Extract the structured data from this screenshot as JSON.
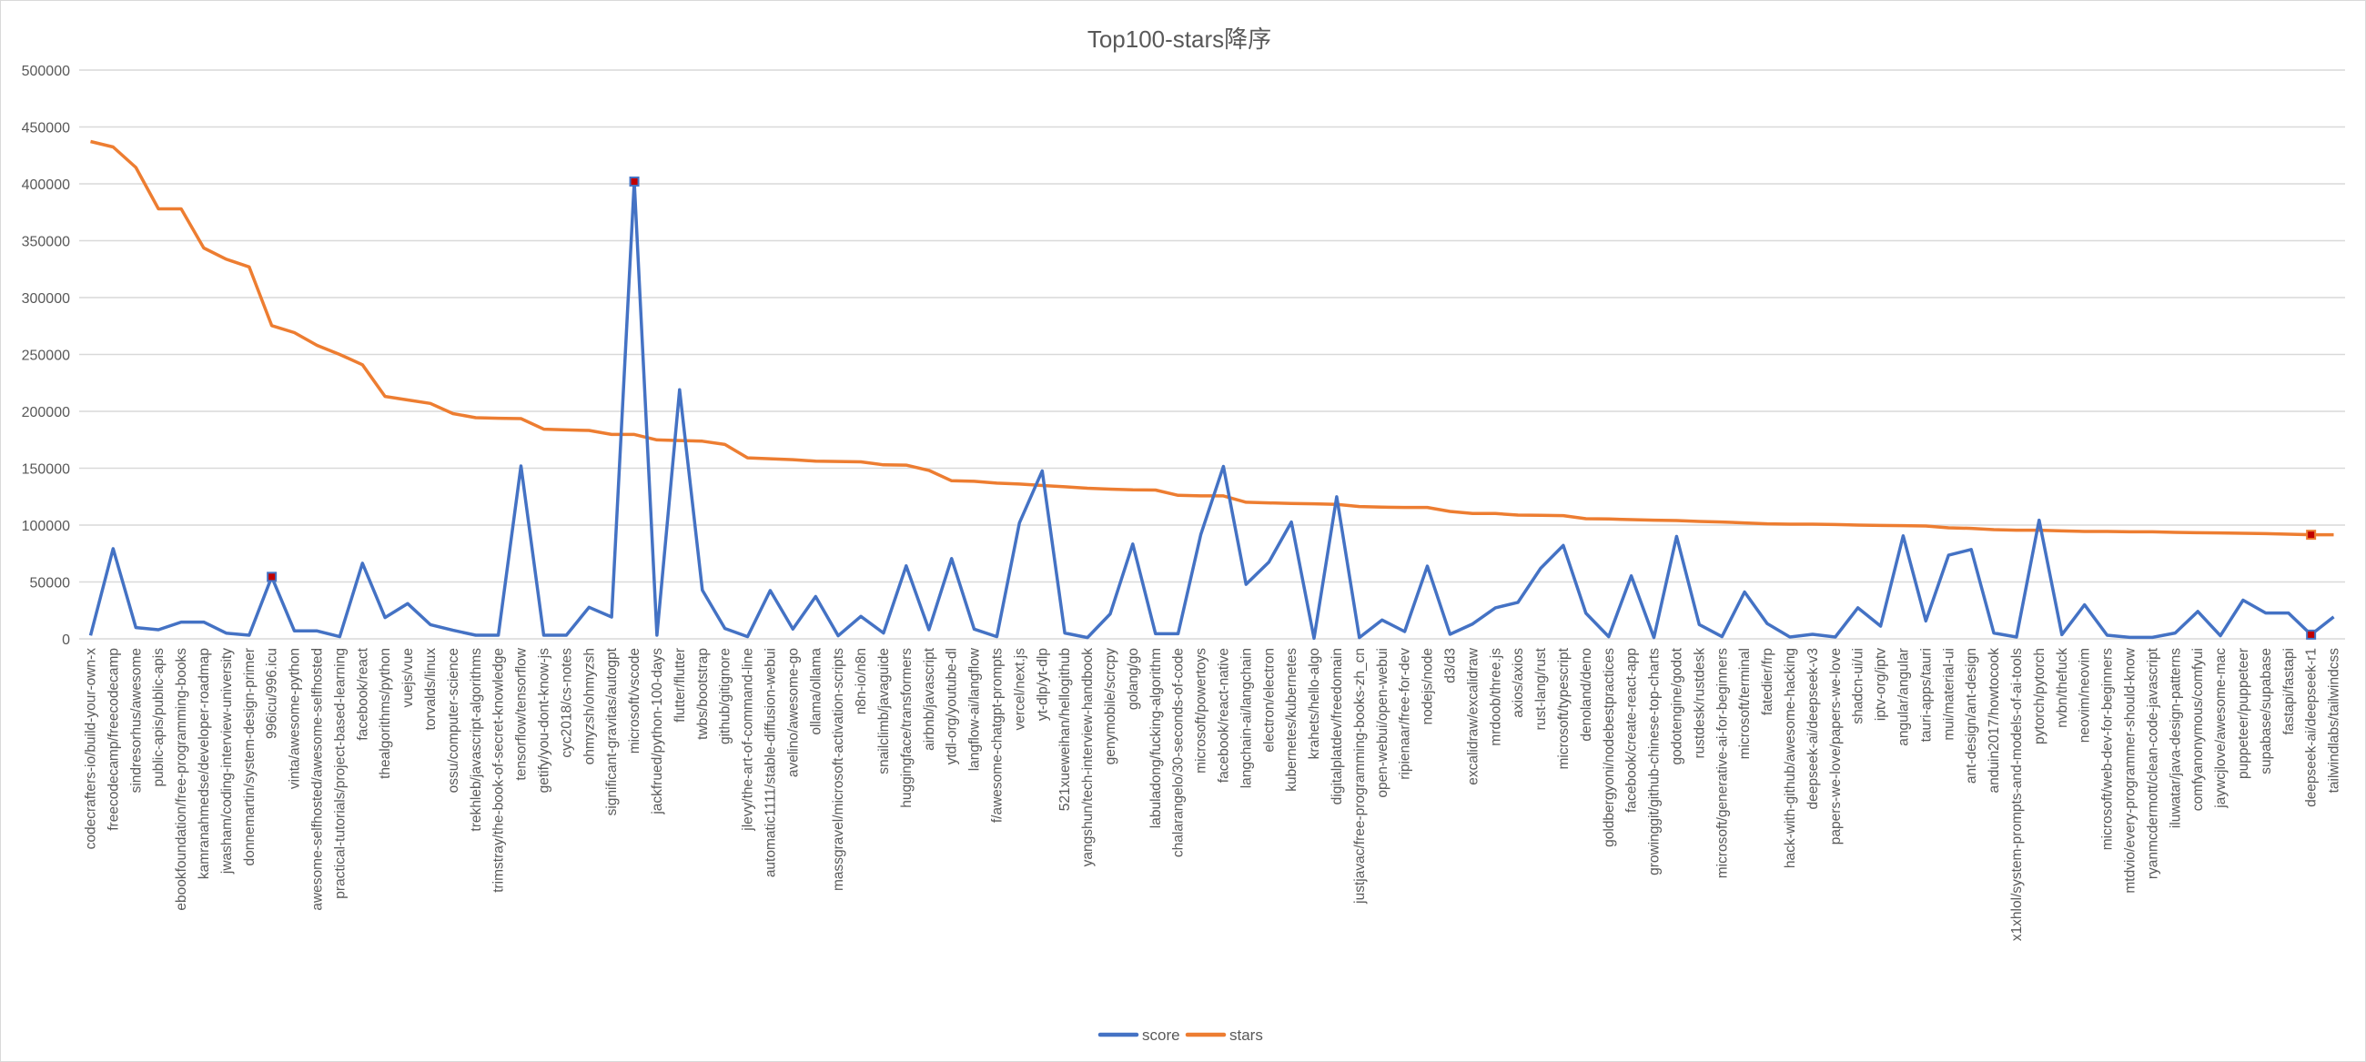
{
  "chart_data": {
    "type": "line",
    "title": "Top100-stars降序",
    "xlabel": "",
    "ylabel": "",
    "ylim": [
      0,
      500000
    ],
    "yticks": [
      0,
      50000,
      100000,
      150000,
      200000,
      250000,
      300000,
      350000,
      400000,
      450000,
      500000
    ],
    "grid": true,
    "legend_position": "bottom",
    "categories": [
      "codecrafters-io/build-your-own-x",
      "freecodecamp/freecodecamp",
      "sindresorhus/awesome",
      "public-apis/public-apis",
      "ebookfoundation/free-programming-books",
      "kamranahmedse/developer-roadmap",
      "jwasham/coding-interview-university",
      "donnemartin/system-design-primer",
      "996icu/996.icu",
      "vinta/awesome-python",
      "awesome-selfhosted/awesome-selfhosted",
      "practical-tutorials/project-based-learning",
      "facebook/react",
      "thealgorithms/python",
      "vuejs/vue",
      "torvalds/linux",
      "ossu/computer-science",
      "trekhleb/javascript-algorithms",
      "trimstray/the-book-of-secret-knowledge",
      "tensorflow/tensorflow",
      "getify/you-dont-know-js",
      "cyc2018/cs-notes",
      "ohmyzsh/ohmyzsh",
      "significant-gravitas/autogpt",
      "microsoft/vscode",
      "jackfrued/python-100-days",
      "flutter/flutter",
      "twbs/bootstrap",
      "github/gitignore",
      "jlevy/the-art-of-command-line",
      "automatic1111/stable-diffusion-webui",
      "avelino/awesome-go",
      "ollama/ollama",
      "massgravel/microsoft-activation-scripts",
      "n8n-io/n8n",
      "snailclimb/javaguide",
      "huggingface/transformers",
      "airbnb/javascript",
      "ytdl-org/youtube-dl",
      "langflow-ai/langflow",
      "f/awesome-chatgpt-prompts",
      "vercel/next.js",
      "yt-dlp/yt-dlp",
      "521xueweihan/hellogithub",
      "yangshun/tech-interview-handbook",
      "genymobile/scrcpy",
      "golang/go",
      "labuladong/fucking-algorithm",
      "chalarangelo/30-seconds-of-code",
      "microsoft/powertoys",
      "facebook/react-native",
      "langchain-ai/langchain",
      "electron/electron",
      "kubernetes/kubernetes",
      "krahets/hello-algo",
      "digitalplatdev/freedomain",
      "justjavac/free-programming-books-zh_cn",
      "open-webui/open-webui",
      "ripienaar/free-for-dev",
      "nodejs/node",
      "d3/d3",
      "excalidraw/excalidraw",
      "mrdoob/three.js",
      "axios/axios",
      "rust-lang/rust",
      "microsoft/typescript",
      "denoland/deno",
      "goldbergyoni/nodebestpractices",
      "facebook/create-react-app",
      "growinggit/github-chinese-top-charts",
      "godotengine/godot",
      "rustdesk/rustdesk",
      "microsoft/generative-ai-for-beginners",
      "microsoft/terminal",
      "fatedier/frp",
      "hack-with-github/awesome-hacking",
      "deepseek-ai/deepseek-v3",
      "papers-we-love/papers-we-love",
      "shadcn-ui/ui",
      "iptv-org/iptv",
      "angular/angular",
      "tauri-apps/tauri",
      "mui/material-ui",
      "ant-design/ant-design",
      "anduin2017/howtocook",
      "x1xhlol/system-prompts-and-models-of-ai-tools",
      "pytorch/pytorch",
      "nvbn/thefuck",
      "neovim/neovim",
      "microsoft/web-dev-for-beginners",
      "mtdvio/every-programmer-should-know",
      "ryanmcdermott/clean-code-javascript",
      "iluwatar/java-design-patterns",
      "comfyanonymous/comfyui",
      "jaywcjlove/awesome-mac",
      "puppeteer/puppeteer",
      "supabase/supabase",
      "fastapi/fastapi",
      "deepseek-ai/deepseek-r1",
      "tailwindlabs/tailwindcss"
    ],
    "series": [
      {
        "name": "score",
        "color": "#4472c4",
        "values": [
          3000,
          79300,
          9900,
          8000,
          14700,
          14700,
          5000,
          3200,
          54500,
          7000,
          7000,
          1900,
          66500,
          18700,
          31000,
          12500,
          7500,
          3200,
          3200,
          152000,
          3200,
          3200,
          27800,
          19200,
          402000,
          3200,
          219000,
          42800,
          9100,
          1900,
          42500,
          8600,
          37200,
          2700,
          19800,
          5100,
          64200,
          8000,
          70600,
          8600,
          1900,
          102100,
          147600,
          5100,
          1100,
          21900,
          83400,
          4500,
          4500,
          91500,
          151600,
          47900,
          67400,
          102700,
          500,
          124900,
          1100,
          16600,
          6400,
          63900,
          4000,
          13100,
          27300,
          32100,
          62000,
          82100,
          22500,
          1900,
          55400,
          1100,
          90100,
          12600,
          1900,
          41200,
          13400,
          1600,
          4000,
          1600,
          27300,
          11200,
          90600,
          15800,
          73500,
          78600,
          5100,
          1600,
          104300,
          3700,
          29900,
          3200,
          1300,
          1300,
          5100,
          24100,
          2700,
          34000,
          22700,
          22700,
          3700,
          19300
        ],
        "highlighted_indices": [
          8,
          24,
          98
        ]
      },
      {
        "name": "stars",
        "color": "#ed7d31",
        "values": [
          437200,
          432400,
          414400,
          378000,
          378000,
          343600,
          333700,
          327000,
          275400,
          269200,
          258000,
          250000,
          241000,
          213100,
          210000,
          207000,
          198000,
          194400,
          193900,
          193600,
          184300,
          183700,
          183200,
          179700,
          179700,
          174900,
          174300,
          173800,
          170900,
          159100,
          158300,
          157500,
          156200,
          155900,
          155600,
          153000,
          152700,
          148100,
          139000,
          138500,
          136900,
          136100,
          134800,
          133700,
          132400,
          131600,
          131000,
          130800,
          126200,
          125700,
          125700,
          120100,
          119500,
          119000,
          118700,
          118200,
          116300,
          115800,
          115500,
          115500,
          112000,
          110200,
          110200,
          108800,
          108600,
          108300,
          105600,
          105400,
          104800,
          104300,
          104000,
          103200,
          102700,
          101900,
          101100,
          100800,
          100800,
          100500,
          100000,
          99700,
          99500,
          99200,
          97600,
          97100,
          96000,
          95500,
          95500,
          94900,
          94400,
          94400,
          94100,
          94100,
          93600,
          93300,
          93100,
          92800,
          92500,
          92000,
          91500,
          91500
        ],
        "highlighted_indices": [
          98
        ]
      }
    ],
    "marker_color": "#c00000"
  }
}
